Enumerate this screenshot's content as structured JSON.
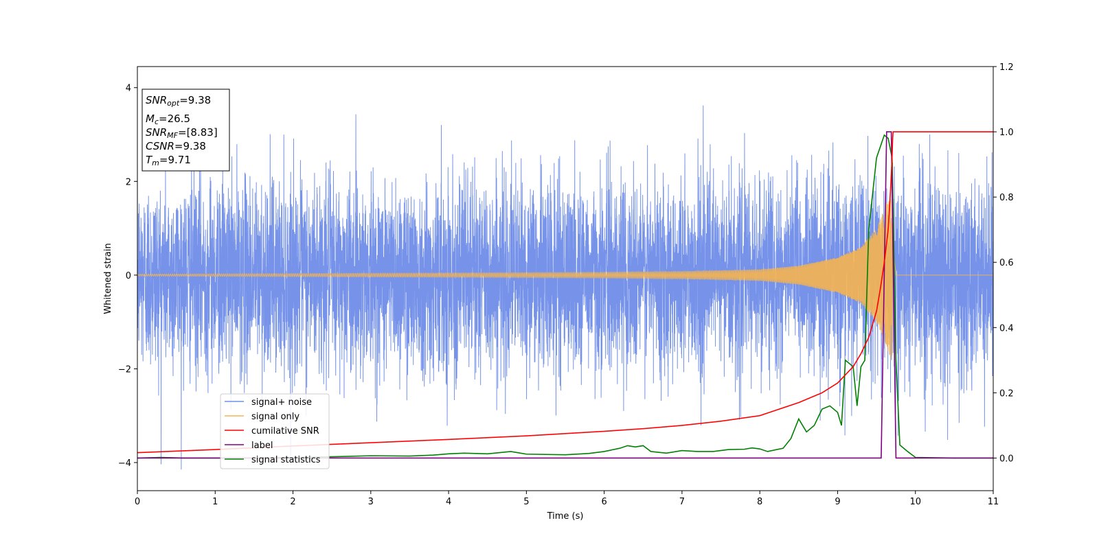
{
  "chart_data": {
    "type": "line",
    "xlabel": "Time (s)",
    "ylabel": "Whitened strain",
    "xlim": [
      0,
      11
    ],
    "ylim_left": [
      -4.6,
      4.45
    ],
    "ylim_right": [
      -0.1,
      1.2
    ],
    "xticks": [
      "0",
      "1",
      "2",
      "3",
      "4",
      "5",
      "6",
      "7",
      "8",
      "9",
      "10",
      "11"
    ],
    "yticks_left": [
      "−4",
      "−2",
      "0",
      "2",
      "4"
    ],
    "yticks_right": [
      "0.0",
      "0.2",
      "0.4",
      "0.6",
      "0.8",
      "1.0",
      "1.2"
    ],
    "grid": false,
    "legend_position": "lower-left",
    "colors": {
      "noise": "#6f8de8",
      "signal": "#f5b450",
      "cumulative_snr": "#ff0000",
      "label": "#800080",
      "statistics": "#008000"
    },
    "info_box": {
      "snr_opt": {
        "base": "SNR",
        "sub": "opt",
        "value": "=9.38"
      },
      "mc": {
        "base": "M",
        "sub": "c",
        "value": "=26.5"
      },
      "snr_mf": {
        "base": "SNR",
        "sub": "MF",
        "value": "=[8.83]"
      },
      "csnr": {
        "base": "CSNR",
        "value": "=9.38"
      },
      "tm": {
        "base": "T",
        "sub": "m",
        "value": "=9.71"
      }
    },
    "series": [
      {
        "name": "signal+ noise",
        "axis": "left",
        "note_amplitude_std": 1.0,
        "t_start": 0,
        "t_end": 11
      },
      {
        "name": "signal only",
        "axis": "left",
        "chirp_merger_time": 9.71,
        "chirp_ringdown_end": 9.75,
        "envelope": [
          [
            0,
            0.02
          ],
          [
            6,
            0.06
          ],
          [
            7,
            0.08
          ],
          [
            8,
            0.12
          ],
          [
            8.5,
            0.2
          ],
          [
            9,
            0.38
          ],
          [
            9.3,
            0.6
          ],
          [
            9.5,
            1.0
          ],
          [
            9.6,
            1.4
          ],
          [
            9.7,
            1.9
          ],
          [
            9.75,
            0
          ]
        ]
      },
      {
        "name": "cumilative SNR",
        "axis": "right",
        "points": [
          [
            0,
            0.0165
          ],
          [
            1,
            0.026
          ],
          [
            2,
            0.037
          ],
          [
            3,
            0.047
          ],
          [
            4,
            0.057
          ],
          [
            5,
            0.068
          ],
          [
            6,
            0.082
          ],
          [
            6.5,
            0.09
          ],
          [
            7,
            0.1
          ],
          [
            7.5,
            0.113
          ],
          [
            8,
            0.13
          ],
          [
            8.5,
            0.17
          ],
          [
            8.8,
            0.2
          ],
          [
            9,
            0.23
          ],
          [
            9.2,
            0.28
          ],
          [
            9.3,
            0.32
          ],
          [
            9.4,
            0.37
          ],
          [
            9.5,
            0.45
          ],
          [
            9.55,
            0.52
          ],
          [
            9.6,
            0.6
          ],
          [
            9.65,
            0.7
          ],
          [
            9.68,
            0.82
          ],
          [
            9.7,
            0.92
          ],
          [
            9.71,
            1.0
          ],
          [
            11,
            1.0
          ]
        ]
      },
      {
        "name": "label",
        "axis": "right",
        "points": [
          [
            0,
            0
          ],
          [
            9.56,
            0
          ],
          [
            9.63,
            1
          ],
          [
            9.69,
            1
          ],
          [
            9.75,
            0
          ],
          [
            11,
            0
          ]
        ]
      },
      {
        "name": "signal statistics",
        "axis": "right",
        "points": [
          [
            0,
            0.0
          ],
          [
            0.3,
            0.002
          ],
          [
            0.6,
            0.0
          ],
          [
            1,
            0.0
          ],
          [
            1.5,
            0.0
          ],
          [
            2,
            0.002
          ],
          [
            2.5,
            0.004
          ],
          [
            3,
            0.007
          ],
          [
            3.5,
            0.006
          ],
          [
            3.8,
            0.009
          ],
          [
            4,
            0.013
          ],
          [
            4.2,
            0.015
          ],
          [
            4.5,
            0.013
          ],
          [
            4.8,
            0.02
          ],
          [
            5,
            0.012
          ],
          [
            5.5,
            0.01
          ],
          [
            5.8,
            0.014
          ],
          [
            6,
            0.02
          ],
          [
            6.2,
            0.03
          ],
          [
            6.3,
            0.038
          ],
          [
            6.4,
            0.034
          ],
          [
            6.5,
            0.038
          ],
          [
            6.6,
            0.02
          ],
          [
            6.8,
            0.015
          ],
          [
            7,
            0.023
          ],
          [
            7.2,
            0.02
          ],
          [
            7.4,
            0.02
          ],
          [
            7.6,
            0.026
          ],
          [
            7.8,
            0.027
          ],
          [
            7.9,
            0.031
          ],
          [
            8,
            0.028
          ],
          [
            8.1,
            0.02
          ],
          [
            8.3,
            0.03
          ],
          [
            8.4,
            0.06
          ],
          [
            8.5,
            0.12
          ],
          [
            8.6,
            0.08
          ],
          [
            8.7,
            0.1
          ],
          [
            8.8,
            0.15
          ],
          [
            8.9,
            0.16
          ],
          [
            9,
            0.14
          ],
          [
            9.05,
            0.1
          ],
          [
            9.1,
            0.3
          ],
          [
            9.2,
            0.28
          ],
          [
            9.25,
            0.16
          ],
          [
            9.3,
            0.28
          ],
          [
            9.35,
            0.3
          ],
          [
            9.4,
            0.7
          ],
          [
            9.5,
            0.92
          ],
          [
            9.6,
            0.99
          ],
          [
            9.65,
            0.98
          ],
          [
            9.7,
            0.92
          ],
          [
            9.75,
            0.3
          ],
          [
            9.8,
            0.04
          ],
          [
            9.9,
            0.02
          ],
          [
            10,
            0.002
          ],
          [
            10.5,
            0.0
          ],
          [
            11,
            0.0
          ]
        ]
      }
    ]
  }
}
